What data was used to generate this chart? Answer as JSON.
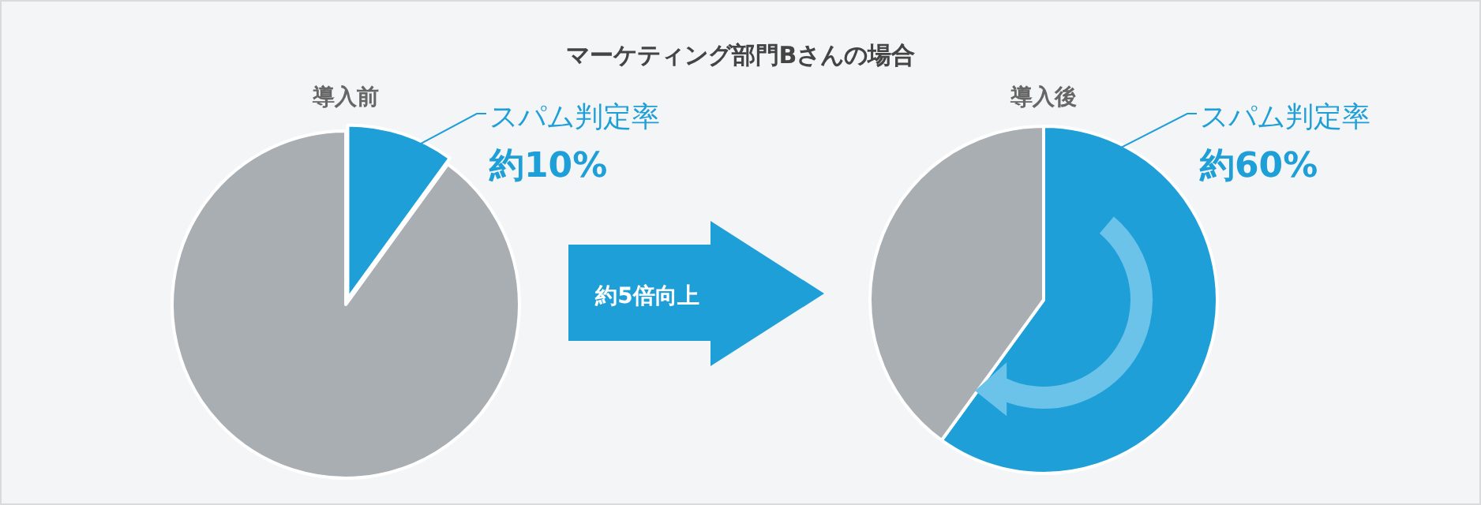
{
  "chart_data": [
    {
      "type": "other",
      "title": "マーケティング部門Bさんの場合",
      "annotations": [
        "約5倍向上"
      ]
    },
    {
      "type": "pie",
      "title": "導入前",
      "categories": [
        "スパム判定率",
        null
      ],
      "values": [
        10,
        90
      ],
      "colors": [
        "#1e9fd8",
        "#a9aeb2"
      ],
      "value_labels": [
        "約10%",
        null
      ]
    },
    {
      "type": "pie",
      "title": "導入後",
      "categories": [
        "スパム判定率",
        null
      ],
      "values": [
        60,
        40
      ],
      "colors": [
        "#1e9fd8",
        "#a9aeb2"
      ],
      "value_labels": [
        "約60%",
        null
      ]
    }
  ]
}
